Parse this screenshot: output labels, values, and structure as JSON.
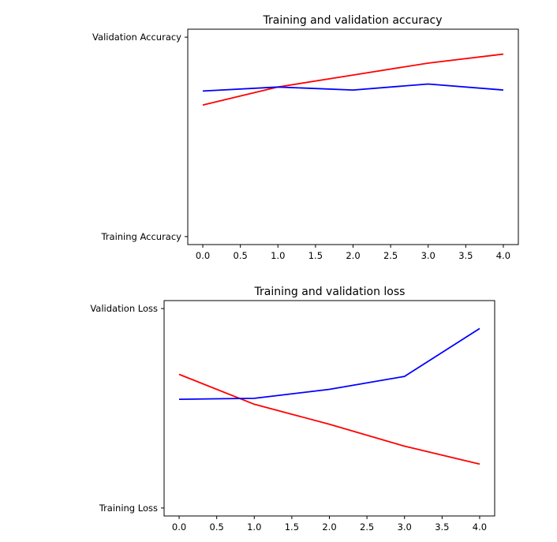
{
  "chart_data": [
    {
      "type": "line",
      "title": "Training and validation accuracy",
      "x": [
        0,
        1,
        2,
        3,
        4
      ],
      "xticks": [
        "0.0",
        "0.5",
        "1.0",
        "1.5",
        "2.0",
        "2.5",
        "3.0",
        "3.5",
        "4.0"
      ],
      "yticks": [
        "Training Accuracy",
        "Validation Accuracy"
      ],
      "xlim": [
        -0.2,
        4.2
      ],
      "ylim": [
        -0.04,
        1.04
      ],
      "series": [
        {
          "color": "#ff0000",
          "values": [
            0.66,
            0.75,
            0.81,
            0.87,
            0.915
          ]
        },
        {
          "color": "#0000ff",
          "values": [
            0.73,
            0.75,
            0.735,
            0.765,
            0.735
          ]
        }
      ]
    },
    {
      "type": "line",
      "title": "Training and validation loss",
      "x": [
        0,
        1,
        2,
        3,
        4
      ],
      "xticks": [
        "0.0",
        "0.5",
        "1.0",
        "1.5",
        "2.0",
        "2.5",
        "3.0",
        "3.5",
        "4.0"
      ],
      "yticks": [
        "Training Loss",
        "Validation Loss"
      ],
      "xlim": [
        -0.2,
        4.2
      ],
      "ylim": [
        -0.04,
        1.04
      ],
      "series": [
        {
          "color": "#ff0000",
          "values": [
            0.67,
            0.52,
            0.42,
            0.31,
            0.22
          ]
        },
        {
          "color": "#0000ff",
          "values": [
            0.545,
            0.55,
            0.595,
            0.66,
            0.9
          ]
        }
      ]
    }
  ]
}
